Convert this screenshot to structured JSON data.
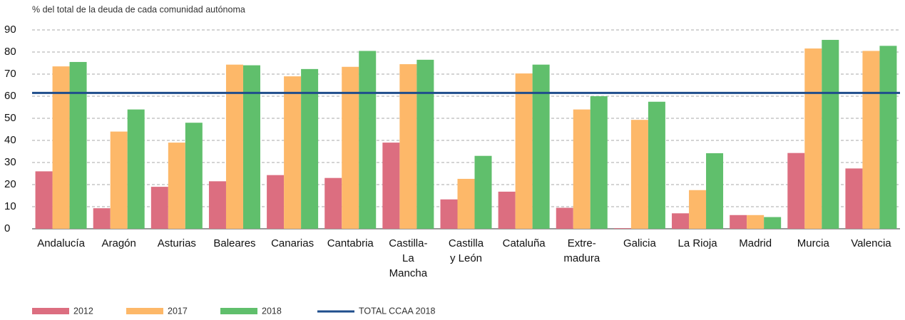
{
  "chart_data": {
    "type": "bar",
    "ylabel": "% del total de la deuda de cada comunidad autónoma",
    "categories": [
      [
        "Andalucía"
      ],
      [
        "Aragón"
      ],
      [
        "Asturias"
      ],
      [
        "Baleares"
      ],
      [
        "Canarias"
      ],
      [
        "Cantabria"
      ],
      [
        "Castilla-",
        "La",
        "Mancha"
      ],
      [
        "Castilla",
        "y León"
      ],
      [
        "Cataluña"
      ],
      [
        "Extre-",
        "madura"
      ],
      [
        "Galicia"
      ],
      [
        "La Rioja"
      ],
      [
        "Madrid"
      ],
      [
        "Murcia"
      ],
      [
        "Valencia"
      ]
    ],
    "series": [
      {
        "name": "2012",
        "color": "#dc6e80",
        "values": [
          26,
          9.3,
          19,
          21.5,
          24.3,
          23,
          39,
          13.3,
          16.8,
          9.5,
          0.3,
          7,
          6.2,
          34.3,
          27.3
        ]
      },
      {
        "name": "2017",
        "color": "#fdb869",
        "values": [
          73.5,
          44,
          39,
          74.3,
          69,
          73.3,
          74.5,
          22.6,
          70.3,
          54,
          49.3,
          17.5,
          6.2,
          81.6,
          80.5
        ]
      },
      {
        "name": "2018",
        "color": "#60bf6c",
        "values": [
          75.5,
          54,
          48,
          74,
          72.3,
          80.5,
          76.5,
          33,
          74.3,
          60,
          57.5,
          34.2,
          5.3,
          85.5,
          82.8
        ]
      }
    ],
    "reference": {
      "name": "TOTAL CCAA 2018",
      "value": 61.5,
      "color": "#1f4e8c"
    },
    "ylim": [
      0,
      90
    ],
    "yticks": [
      0,
      10,
      20,
      30,
      40,
      50,
      60,
      70,
      80,
      90
    ],
    "grid": true
  }
}
